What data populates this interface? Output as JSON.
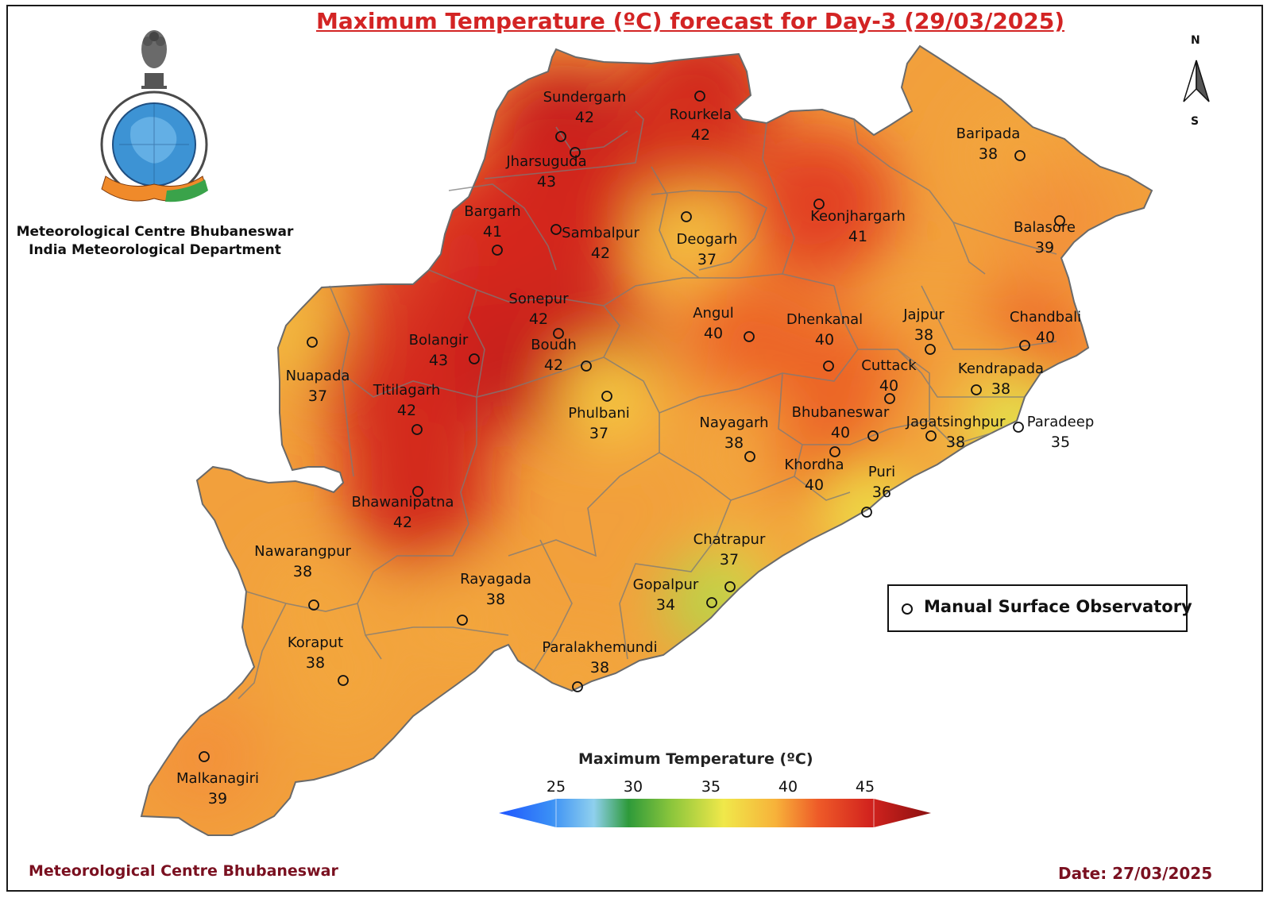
{
  "title": "Maximum Temperature (ºC) forecast for Day-3 (29/03/2025)",
  "organization": {
    "line1": "Meteorological Centre Bhubaneswar",
    "line2": "India Meteorological Department"
  },
  "footer": {
    "left": "Meteorological Centre Bhubaneswar",
    "date": "Date: 27/03/2025"
  },
  "compass": {
    "north": "N",
    "south": "S"
  },
  "legend": {
    "label": "Manual Surface Observatory"
  },
  "colorbar": {
    "title": "Maximum Temperature (ºC)",
    "ticks": [
      "25",
      "30",
      "35",
      "40",
      "45"
    ],
    "colors": [
      "#1f55ff",
      "#5fb0f0",
      "#a8d8e8",
      "#2e9a3a",
      "#8cc63c",
      "#f0e84a",
      "#f7b23a",
      "#ee5a28",
      "#d2231e",
      "#8a1010"
    ]
  },
  "stations": [
    {
      "name": "Sundergarh",
      "value": "42"
    },
    {
      "name": "Rourkela",
      "value": "42"
    },
    {
      "name": "Jharsuguda",
      "value": "43"
    },
    {
      "name": "Baripada",
      "value": "38"
    },
    {
      "name": "Bargarh",
      "value": "41"
    },
    {
      "name": "Sambalpur",
      "value": "42"
    },
    {
      "name": "Deogarh",
      "value": "37"
    },
    {
      "name": "Keonjhargarh",
      "value": "41"
    },
    {
      "name": "Balasore",
      "value": "39"
    },
    {
      "name": "Sonepur",
      "value": "42"
    },
    {
      "name": "Angul",
      "value": "40"
    },
    {
      "name": "Dhenkanal",
      "value": "40"
    },
    {
      "name": "Jajpur",
      "value": "38"
    },
    {
      "name": "Chandbali",
      "value": "40"
    },
    {
      "name": "Bolangir",
      "value": "43"
    },
    {
      "name": "Boudh",
      "value": "42"
    },
    {
      "name": "Nuapada",
      "value": "37"
    },
    {
      "name": "Cuttack",
      "value": "40"
    },
    {
      "name": "Kendrapada",
      "value": "38"
    },
    {
      "name": "Titilagarh",
      "value": "42"
    },
    {
      "name": "Phulbani",
      "value": "37"
    },
    {
      "name": "Bhubaneswar",
      "value": "40"
    },
    {
      "name": "Nayagarh",
      "value": "38"
    },
    {
      "name": "Jagatsinghpur",
      "value": "38"
    },
    {
      "name": "Paradeep",
      "value": "35"
    },
    {
      "name": "Khordha",
      "value": "40"
    },
    {
      "name": "Puri",
      "value": "36"
    },
    {
      "name": "Bhawanipatna",
      "value": "42"
    },
    {
      "name": "Chatrapur",
      "value": "37"
    },
    {
      "name": "Nawarangpur",
      "value": "38"
    },
    {
      "name": "Gopalpur",
      "value": "34"
    },
    {
      "name": "Rayagada",
      "value": "38"
    },
    {
      "name": "Koraput",
      "value": "38"
    },
    {
      "name": "Paralakhemundi",
      "value": "38"
    },
    {
      "name": "Malkanagiri",
      "value": "39"
    }
  ]
}
